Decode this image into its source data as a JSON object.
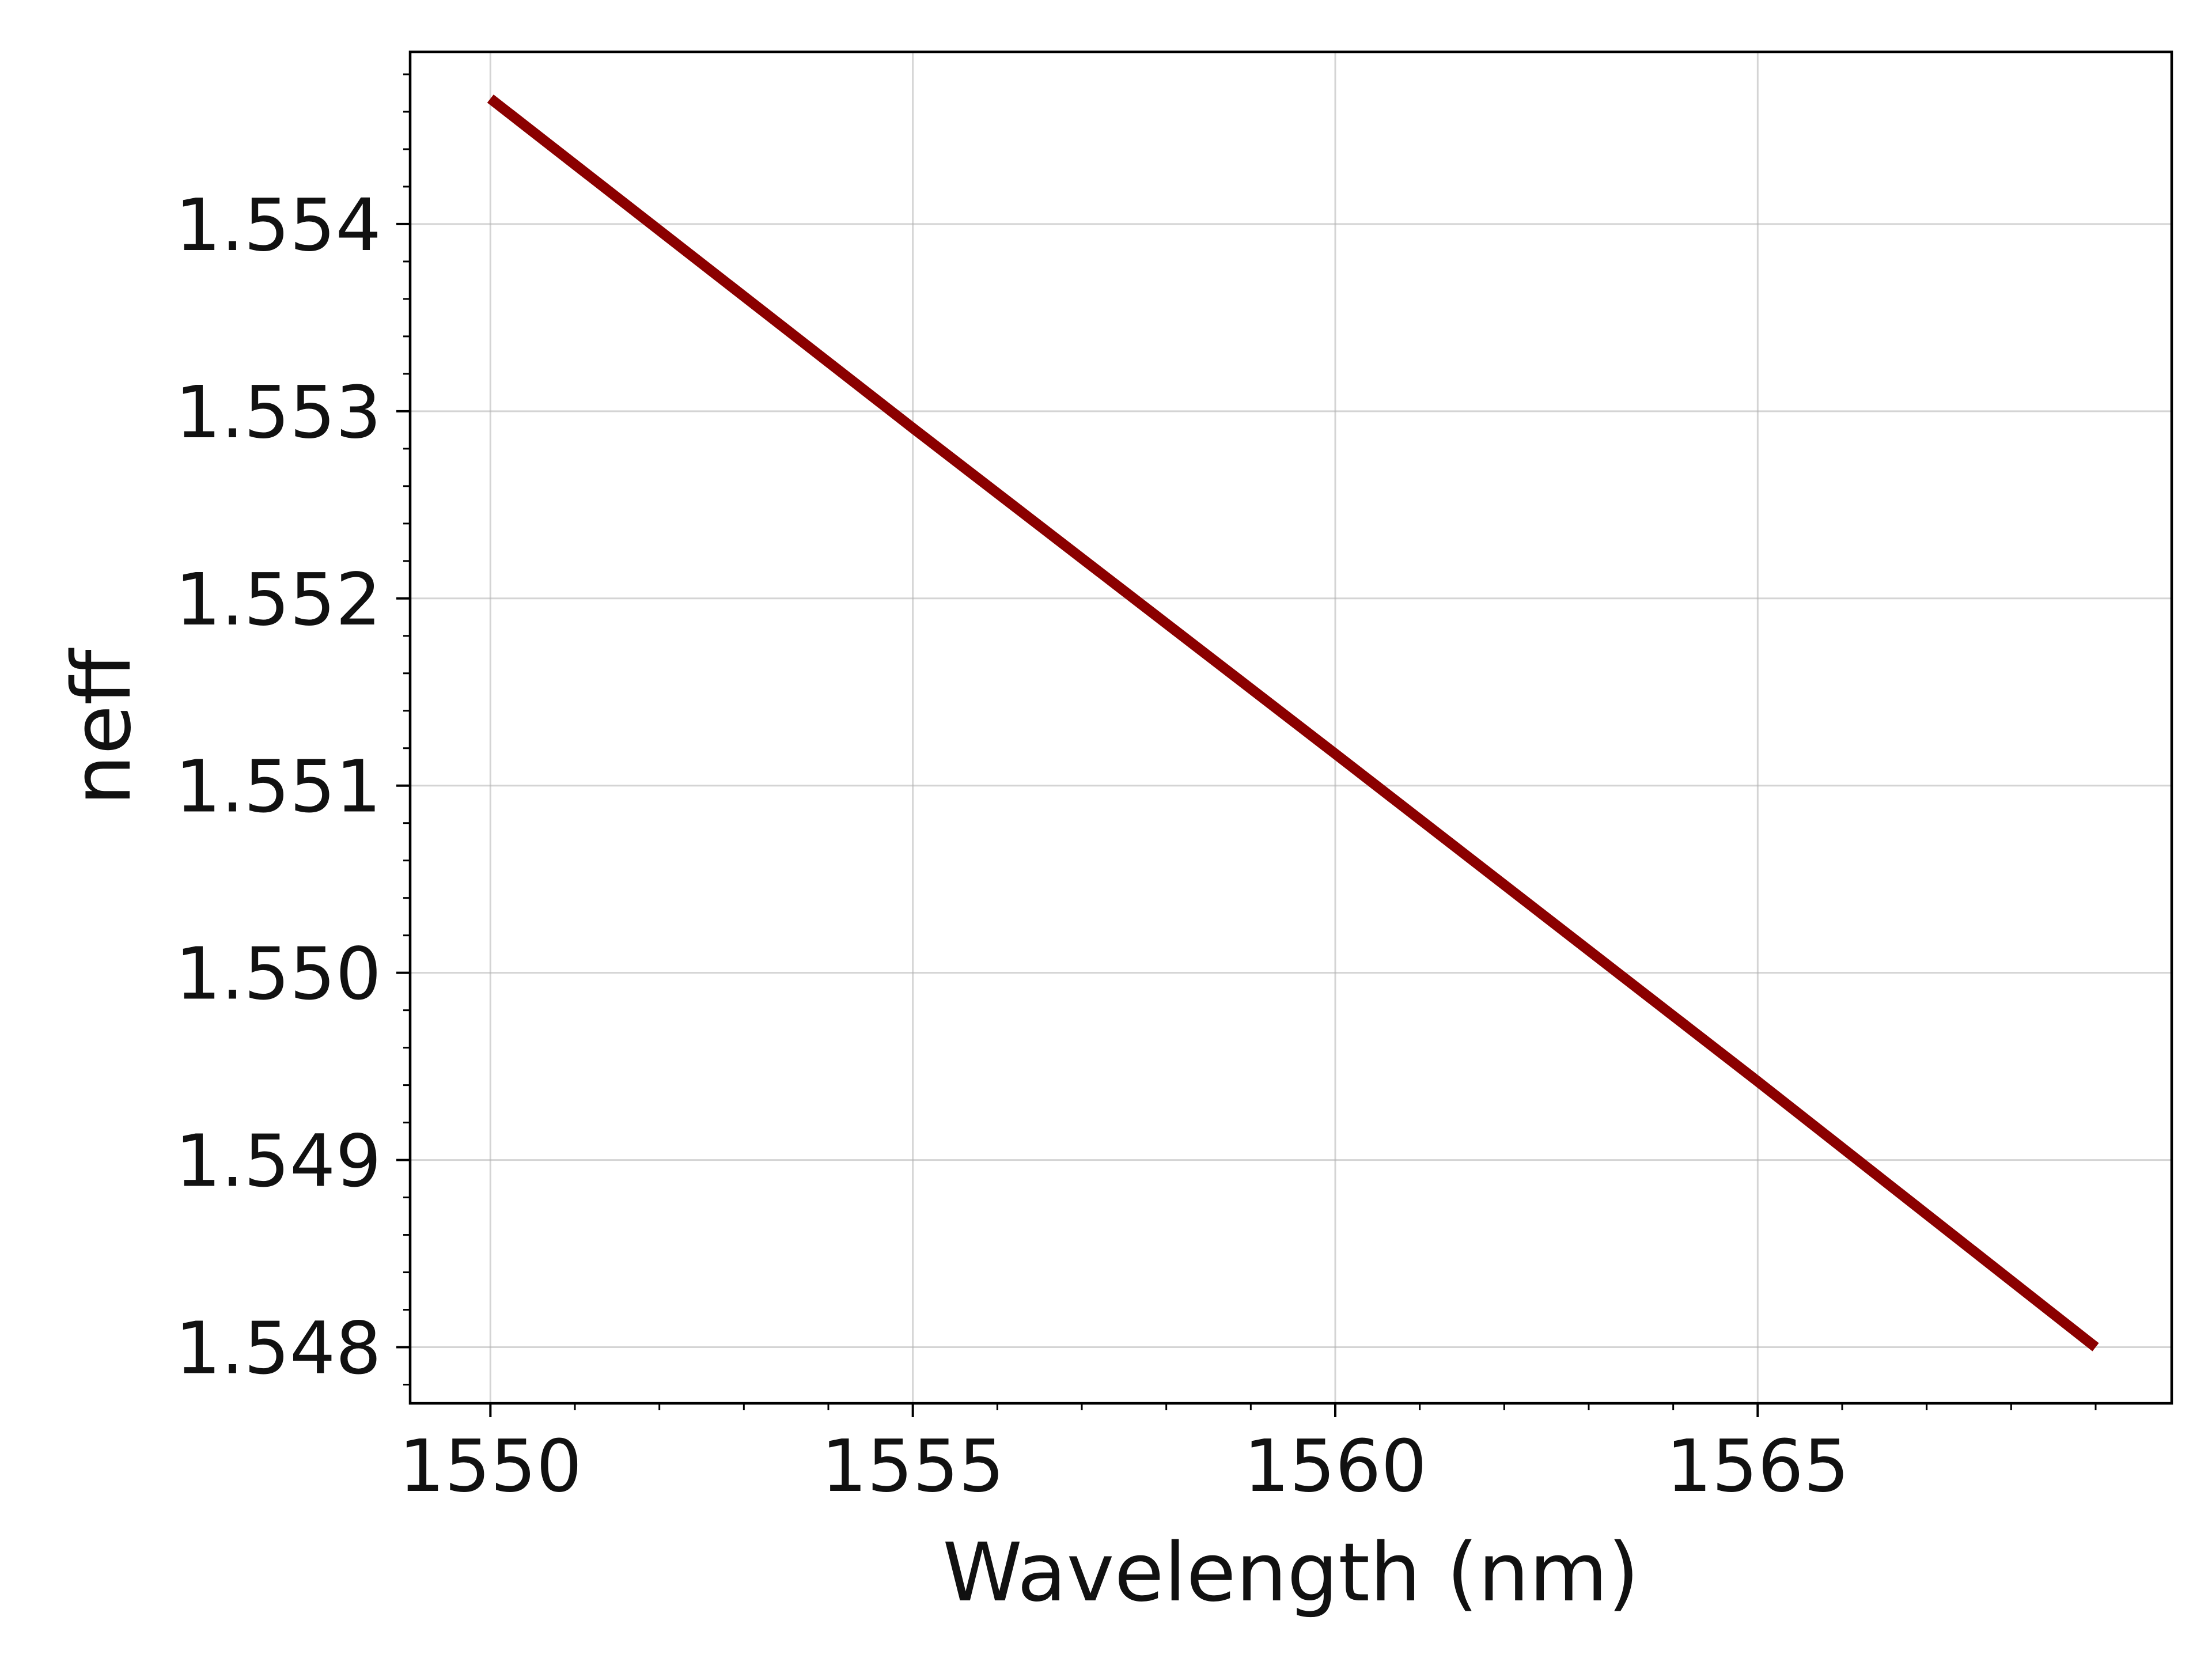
{
  "chart_data": {
    "type": "line",
    "title": "",
    "xlabel": "Wavelength (nm)",
    "ylabel": "neff",
    "xlim": [
      1549.05,
      1569.9
    ],
    "ylim": [
      1.5477,
      1.55492
    ],
    "x_ticks": [
      1550,
      1555,
      1560,
      1565
    ],
    "x_tick_labels": [
      "1550",
      "1555",
      "1560",
      "1565"
    ],
    "x_minor_step": 1,
    "y_ticks": [
      1.548,
      1.549,
      1.55,
      1.551,
      1.552,
      1.553,
      1.554
    ],
    "y_tick_labels": [
      "1.548",
      "1.549",
      "1.550",
      "1.551",
      "1.552",
      "1.553",
      "1.554"
    ],
    "y_minor_step": 0.0002,
    "grid": true,
    "legend": "none",
    "series": [
      {
        "color": "#8b0000",
        "x": [
          1550,
          1555,
          1560,
          1565,
          1569
        ],
        "y": [
          1.55467,
          1.55291,
          1.55117,
          1.54942,
          1.548
        ]
      }
    ]
  }
}
